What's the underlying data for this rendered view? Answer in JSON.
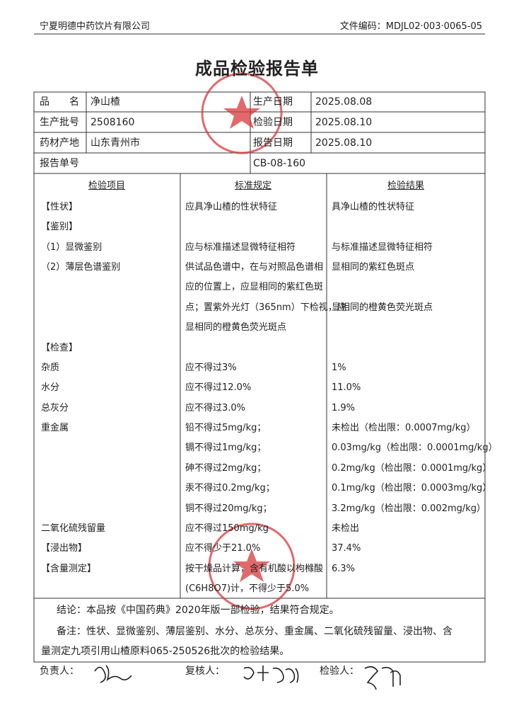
{
  "header": {
    "company": "宁夏明德中药饮片有限公司",
    "doc_code": "文件编码：MDJL02·003·0065-05"
  },
  "title": "成品检验报告单",
  "info": {
    "rows": [
      [
        "品　　名",
        "净山楂",
        "生产日期",
        "2025.08.08"
      ],
      [
        "生产批号",
        "2508160",
        "检验日期",
        "2025.08.10"
      ],
      [
        "药材产地",
        "山东青州市",
        "报告日期",
        "2025.08.10"
      ]
    ],
    "report_no_label": "报告单号",
    "report_no": "CB-08-160"
  },
  "columns": [
    "检验项目",
    "标准规定",
    "检验结果"
  ],
  "items": [
    {
      "item": "【性状】",
      "standard": [
        "应具净山楂的性状特征"
      ],
      "result": [
        "具净山楂的性状特征"
      ]
    },
    {
      "item": "【鉴别】"
    },
    {
      "item": "（1）显微鉴别",
      "standard": [
        "应与标准描述显微特征相符"
      ],
      "result": [
        "与标准描述显微特征相符"
      ]
    },
    {
      "item": "（2）薄层色谱鉴别",
      "standard": [
        "供试品色谱中，在与对照品色谱相",
        "应的位置上，应显相同的紫红色斑",
        "点；置紫外光灯（365nm）下检视，应",
        "显相同的橙黄色荧光斑点"
      ],
      "result": [
        "显相同的紫红色斑点",
        "显相同的橙黄色荧光斑点"
      ]
    },
    {
      "item": "【检查】"
    },
    {
      "item": "杂质",
      "standard": [
        "应不得过3%"
      ],
      "result": [
        "1%"
      ]
    },
    {
      "item": "水分",
      "standard": [
        "应不得过12.0%"
      ],
      "result": [
        "11.0%"
      ]
    },
    {
      "item": "总灰分",
      "standard": [
        "应不得过3.0%"
      ],
      "result": [
        "1.9%"
      ]
    },
    {
      "item": "重金属",
      "standard": [
        "铅不得过5mg/kg；",
        "镉不得过1mg/kg；",
        "砷不得过2mg/kg；",
        "汞不得过0.2mg/kg；",
        "铜不得过20mg/kg；"
      ],
      "result": [
        "未检出（检出限：0.0007mg/kg）",
        "0.03mg/kg（检出限：0.0001mg/kg）",
        "0.2mg/kg（检出限：0.0001mg/kg）",
        "0.1mg/kg（检出限：0.0003mg/kg）",
        "3.2mg/kg（检出限：0.002mg/kg）"
      ]
    },
    {
      "item": "二氧化硫残留量",
      "standard": [
        "应不得过150mg/kg"
      ],
      "result": [
        "未检出"
      ]
    },
    {
      "item": "【浸出物】",
      "standard": [
        "应不得少于21.0%"
      ],
      "result": [
        "37.4%"
      ]
    },
    {
      "item": "【含量测定】",
      "standard": [
        "按干燥品计算，含有机酸以枸橼酸",
        "(C6H8O7)计，不得少于5.0%"
      ],
      "result": [
        "6.3%"
      ]
    }
  ],
  "conclusion": "结论：本品按《中国药典》2020年版一部检验，结果符合规定。",
  "remark": [
    "备注：性状、显微鉴别、薄层鉴别、水分、总灰分、重金属、二氧化硫残留量、浸出物、含",
    "量测定九项引用山楂原料065-250526批次的检验结果。"
  ],
  "footer": [
    "负责人：",
    "复核人：",
    "检验人："
  ]
}
